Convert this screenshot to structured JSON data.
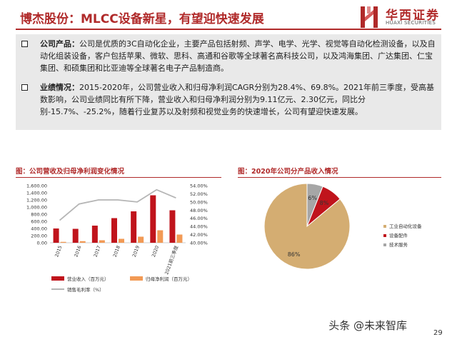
{
  "header": {
    "title": "博杰股份：MLCC设备新星，有望迎快速发展",
    "logo_name": "华西证券",
    "logo_en": "HUAXI SECURITIES"
  },
  "bullets": [
    {
      "label": "公司产品：",
      "text": "公司是优质的3C自动化企业，主要产品包括射频、声学、电学、光学、视觉等自动化检测设备，以及自动化组装设备，客户包括苹果、微软、思科、高通和谷歌等全球著名高科技公司，以及鸿海集团、广达集团、仁宝集团、和硕集团和比亚迪等全球著名电子产品制造商。"
    },
    {
      "label": "业绩情况：",
      "text": "2015-2020年，公司营业收入和归母净利润CAGR分别为28.4%、69.8%。2021年前三季度，受高基数影响，公司业绩同比有所下降，营业收入和归母净利润分别为9.11亿元、2.30亿元，同比分别-15.7%、-25.2%，随着行业复苏以及射频和视觉业务的快速增长，公司有望迎快速发展。"
    }
  ],
  "charts": {
    "left_title": "图：公司营收及归母净利润变化情况",
    "right_title": "图：2020年公司分产品收入情况"
  },
  "chart_data": [
    {
      "type": "bar",
      "categories": [
        "2015",
        "2016",
        "2017",
        "2018",
        "2019",
        "2020",
        "2021前三季度"
      ],
      "series": [
        {
          "name": "营业收入（百万元）",
          "axis": "left",
          "color": "#c0141c",
          "values": [
            400,
            390,
            480,
            690,
            880,
            1330,
            910
          ]
        },
        {
          "name": "归母净利润（百万元）",
          "axis": "left",
          "color": "#f29a55",
          "values": [
            25,
            45,
            70,
            110,
            170,
            350,
            230
          ]
        },
        {
          "name": "销售毛利率（%）",
          "type": "line",
          "axis": "right",
          "color": "#b5b5b5",
          "values": [
            45.5,
            49.5,
            50.5,
            50.5,
            50.0,
            53.0,
            51.0
          ]
        }
      ],
      "yticks_left": [
        "1,600.00",
        "1,400.00",
        "1,200.00",
        "1,000.00",
        "800.00",
        "600.00",
        "400.00",
        "200.00",
        "0.00"
      ],
      "yticks_right": [
        "54.00%",
        "52.00%",
        "50.00%",
        "48.00%",
        "46.00%",
        "44.00%",
        "42.00%",
        "40.00%"
      ],
      "ylim_left": [
        0,
        1600
      ],
      "ylim_right": [
        40,
        54
      ],
      "legend_position": "bottom"
    },
    {
      "type": "pie",
      "labels": [
        "工业自动化设备",
        "设备配件",
        "技术服务"
      ],
      "values": [
        86,
        8,
        6
      ],
      "value_labels": [
        "86%",
        "8%",
        "6%"
      ],
      "colors": [
        "#d4ad72",
        "#c0141c",
        "#a6a6a6"
      ],
      "legend_position": "right"
    }
  ],
  "footer": {
    "watermark": "头条 @未来智库",
    "page_number": "29"
  }
}
